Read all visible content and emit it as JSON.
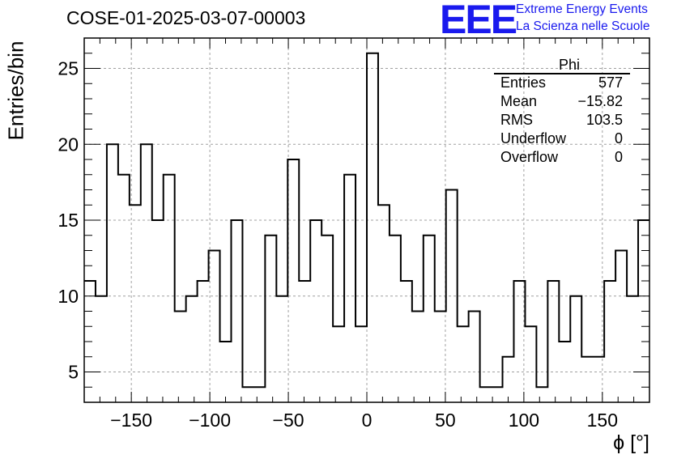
{
  "header": {
    "title": "COSE-01-2025-03-07-00003"
  },
  "logo": {
    "mark": "EEE",
    "line1": "Extreme Energy Events",
    "line2": "La Scienza nelle Scuole",
    "color": "#1a1aee"
  },
  "stats": {
    "name": "Phi",
    "rows": [
      {
        "label": "Entries",
        "value": "577"
      },
      {
        "label": "Mean",
        "value": "−15.82"
      },
      {
        "label": "RMS",
        "value": "103.5"
      },
      {
        "label": "Underflow",
        "value": "0"
      },
      {
        "label": "Overflow",
        "value": "0"
      }
    ]
  },
  "chart_data": {
    "type": "histogram-step",
    "title": "COSE-01-2025-03-07-00003",
    "xlabel": "ϕ [°]",
    "ylabel": "Entries/bin",
    "xlim": [
      -180,
      180
    ],
    "ylim": [
      3,
      27
    ],
    "bin_width": 7.2,
    "bin_edges_start": -180,
    "values": [
      11,
      10,
      20,
      18,
      16,
      20,
      15,
      18,
      9,
      10,
      11,
      13,
      7,
      15,
      4,
      4,
      14,
      10,
      19,
      11,
      15,
      14,
      8,
      18,
      8,
      26,
      16,
      14,
      11,
      9,
      14,
      9,
      17,
      8,
      9,
      4,
      4,
      6,
      11,
      8,
      4,
      11,
      7,
      10,
      6,
      6,
      11,
      13,
      10,
      15
    ],
    "xticks": [
      -150,
      -100,
      -50,
      0,
      50,
      100,
      150
    ],
    "xtick_labels": [
      "−150",
      "−100",
      "−50",
      "0",
      "50",
      "100",
      "150"
    ],
    "yticks": [
      5,
      10,
      15,
      20,
      25
    ],
    "ytick_labels": [
      "5",
      "10",
      "15",
      "20",
      "25"
    ],
    "grid": true,
    "line_color": "#000000"
  }
}
